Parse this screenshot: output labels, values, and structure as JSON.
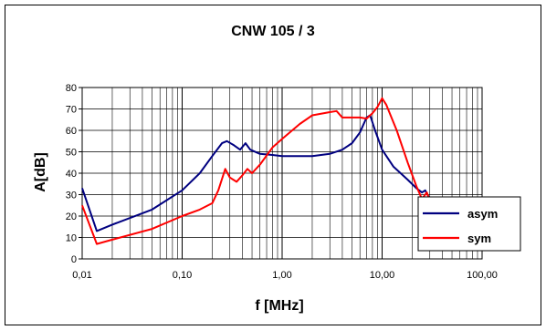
{
  "chart_data": {
    "type": "line",
    "title": "CNW 105 / 3",
    "xlabel": "f [MHz]",
    "ylabel": "A[dB]",
    "x_scale": "log",
    "xlim": [
      0.01,
      100
    ],
    "ylim": [
      0,
      80
    ],
    "grid": true,
    "legend_position": "right",
    "x_ticks": [
      "0,01",
      "0,10",
      "1,00",
      "10,00",
      "100,00"
    ],
    "y_ticks": [
      "0",
      "10",
      "20",
      "30",
      "40",
      "50",
      "60",
      "70",
      "80"
    ],
    "series": [
      {
        "name": "asym",
        "color": "#000080",
        "points": [
          [
            0.01,
            33
          ],
          [
            0.014,
            13
          ],
          [
            0.02,
            16
          ],
          [
            0.05,
            23
          ],
          [
            0.1,
            32
          ],
          [
            0.15,
            40
          ],
          [
            0.2,
            48
          ],
          [
            0.25,
            54
          ],
          [
            0.28,
            55
          ],
          [
            0.33,
            53
          ],
          [
            0.38,
            51
          ],
          [
            0.43,
            54
          ],
          [
            0.48,
            51
          ],
          [
            0.6,
            49
          ],
          [
            0.8,
            48.5
          ],
          [
            1.0,
            48
          ],
          [
            2.0,
            48
          ],
          [
            3.0,
            49
          ],
          [
            4.0,
            51
          ],
          [
            5.0,
            54
          ],
          [
            6.0,
            59
          ],
          [
            7.0,
            66
          ],
          [
            7.6,
            67
          ],
          [
            8.5,
            60
          ],
          [
            10.0,
            51
          ],
          [
            13.0,
            43
          ],
          [
            18.0,
            37
          ],
          [
            22.0,
            33
          ],
          [
            25.0,
            31
          ],
          [
            27.0,
            32
          ],
          [
            30.0,
            28
          ]
        ]
      },
      {
        "name": "sym",
        "color": "#ff0000",
        "points": [
          [
            0.01,
            25
          ],
          [
            0.014,
            7
          ],
          [
            0.02,
            9
          ],
          [
            0.05,
            14
          ],
          [
            0.1,
            20
          ],
          [
            0.15,
            23
          ],
          [
            0.2,
            26
          ],
          [
            0.23,
            32
          ],
          [
            0.27,
            42
          ],
          [
            0.3,
            38
          ],
          [
            0.35,
            36
          ],
          [
            0.4,
            39
          ],
          [
            0.45,
            42
          ],
          [
            0.5,
            40
          ],
          [
            0.6,
            44
          ],
          [
            0.8,
            52
          ],
          [
            1.0,
            56
          ],
          [
            1.5,
            63
          ],
          [
            2.0,
            67
          ],
          [
            3.0,
            68.5
          ],
          [
            3.5,
            69
          ],
          [
            4.0,
            66
          ],
          [
            5.0,
            66
          ],
          [
            6.0,
            66
          ],
          [
            7.0,
            65.5
          ],
          [
            8.0,
            68
          ],
          [
            9.0,
            71
          ],
          [
            10.0,
            75
          ],
          [
            11.0,
            72
          ],
          [
            14.0,
            60
          ],
          [
            18.0,
            45
          ],
          [
            22.0,
            34
          ],
          [
            25.0,
            28
          ],
          [
            28.0,
            31
          ],
          [
            30.0,
            27
          ]
        ]
      }
    ]
  }
}
